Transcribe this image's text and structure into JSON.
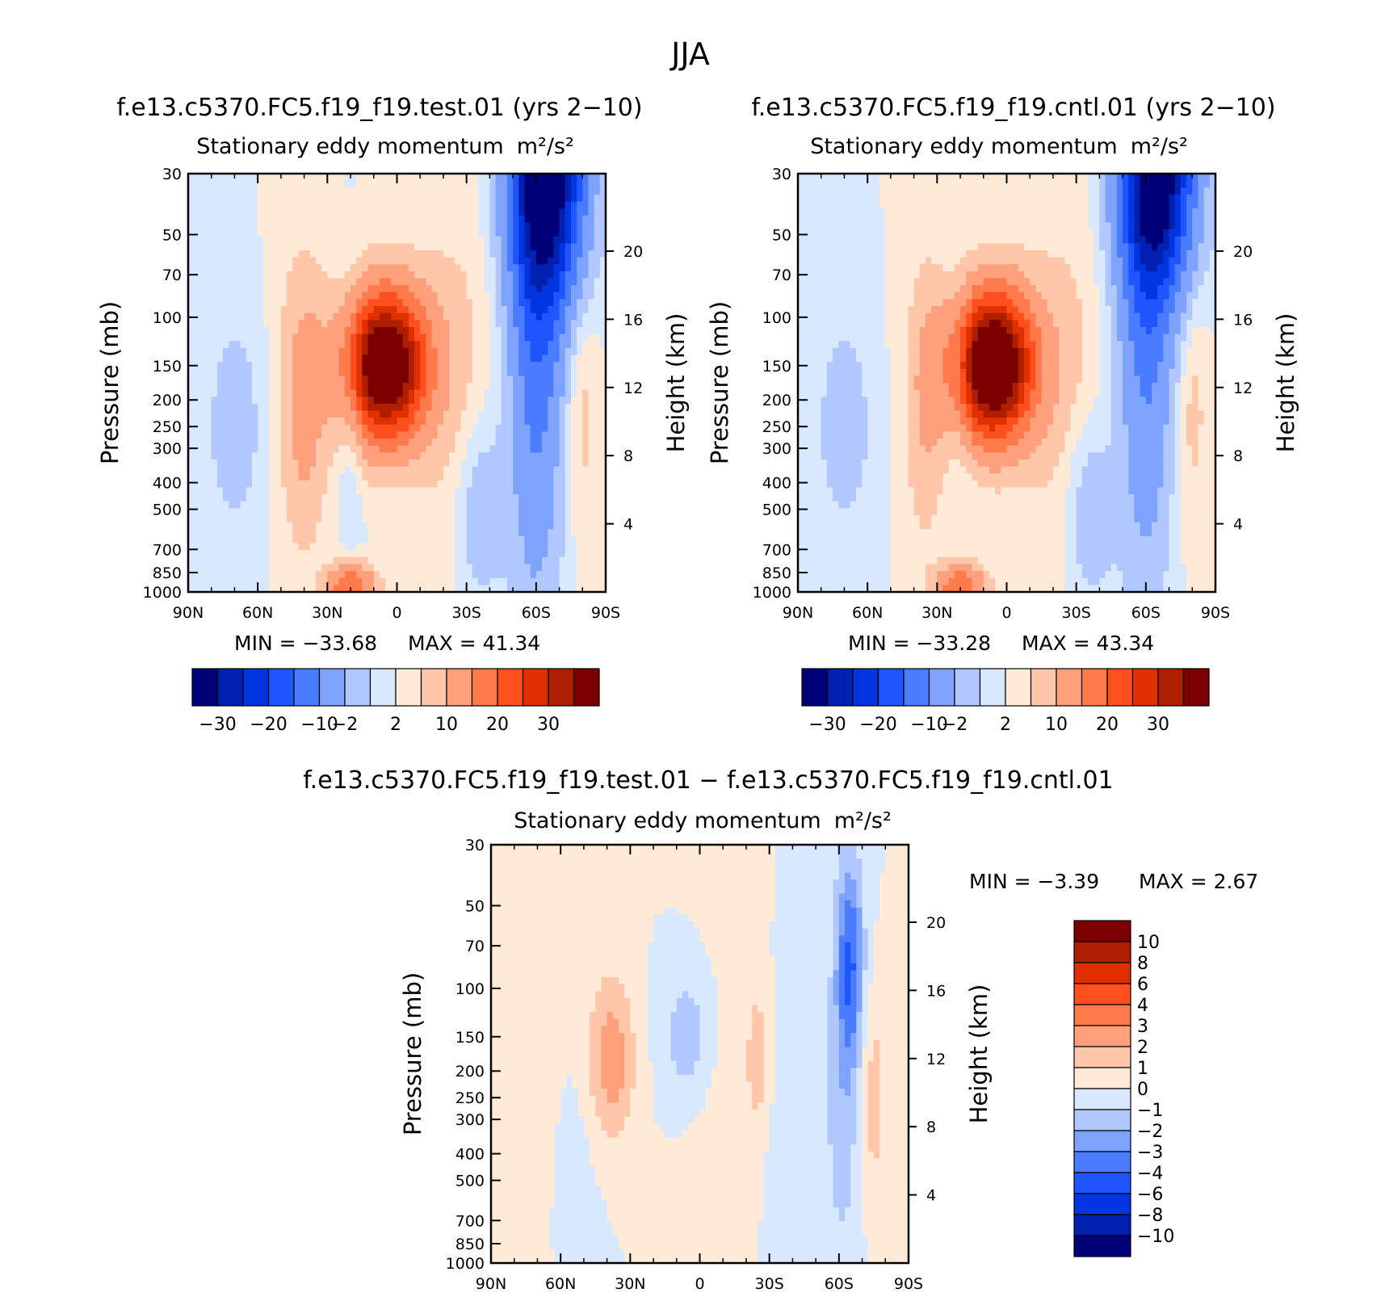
{
  "figure_title": "JJA",
  "chart_data": [
    {
      "id": "test",
      "type": "contour",
      "case_title": "f.e13.c5370.FC5.f19_f19.test.01 (yrs 2−10)",
      "variable": "Stationary eddy momentum",
      "units": "m²/s²",
      "ylabel": "Pressure (mb)",
      "ylabel_right": "Height (km)",
      "x_ticks": [
        "90N",
        "60N",
        "30N",
        "0",
        "30S",
        "60S",
        "90S"
      ],
      "y_ticks": [
        30,
        50,
        70,
        100,
        150,
        200,
        250,
        300,
        400,
        500,
        700,
        850,
        1000
      ],
      "height_ticks": [
        20,
        16,
        12,
        8,
        4
      ],
      "min_label": "MIN = −33.68",
      "max_label": "MAX = 41.34",
      "min": -33.68,
      "max": 41.34,
      "levels": [
        -30,
        -25,
        -20,
        -15,
        -10,
        -5,
        -2,
        0,
        2,
        5,
        10,
        15,
        20,
        25,
        30
      ],
      "colorbar_labels": [
        "−30",
        "−20",
        "−10",
        "−2",
        "2",
        "10",
        "20",
        "30"
      ],
      "colors": [
        "#000078",
        "#0020b0",
        "#0035e0",
        "#1e55ff",
        "#4a7cff",
        "#7ea3ff",
        "#b0c8ff",
        "#d8e8ff",
        "#ffead8",
        "#ffc6aa",
        "#ffa07c",
        "#ff7a4a",
        "#ff4f1e",
        "#e03000",
        "#b01e00",
        "#7a0000"
      ],
      "features": [
        {
          "lat": 5,
          "p": 150,
          "amp": 41.34,
          "wlat": 12,
          "wp": 0.42
        },
        {
          "lat": -65,
          "p": 30,
          "amp": -33.68,
          "wlat": 11,
          "wp": 0.75
        },
        {
          "lat": -60,
          "p": 120,
          "amp": -12,
          "wlat": 8,
          "wp": 1.5
        },
        {
          "lat": -35,
          "p": 500,
          "amp": -5,
          "wlat": 8,
          "wp": 0.6
        },
        {
          "lat": 40,
          "p": 200,
          "amp": 7,
          "wlat": 7,
          "wp": 0.8
        },
        {
          "lat": 20,
          "p": 200,
          "amp": -4,
          "wlat": 4,
          "wp": 0.6
        },
        {
          "lat": 70,
          "p": 250,
          "amp": -4,
          "wlat": 8,
          "wp": 0.6
        },
        {
          "lat": 20,
          "p": 950,
          "amp": 15,
          "wlat": 7,
          "wp": 0.12
        },
        {
          "lat": -25,
          "p": 200,
          "amp": 3,
          "wlat": 12,
          "wp": 1.2
        },
        {
          "lat": -80,
          "p": 200,
          "amp": 3,
          "wlat": 5,
          "wp": 0.8
        }
      ]
    },
    {
      "id": "control",
      "type": "contour",
      "case_title": "f.e13.c5370.FC5.f19_f19.cntl.01 (yrs 2−10)",
      "variable": "Stationary eddy momentum",
      "units": "m²/s²",
      "ylabel": "Pressure (mb)",
      "ylabel_right": "Height (km)",
      "x_ticks": [
        "90N",
        "60N",
        "30N",
        "0",
        "30S",
        "60S",
        "90S"
      ],
      "y_ticks": [
        30,
        50,
        70,
        100,
        150,
        200,
        250,
        300,
        400,
        500,
        700,
        850,
        1000
      ],
      "height_ticks": [
        20,
        16,
        12,
        8,
        4
      ],
      "min_label": "MIN = −33.28",
      "max_label": "MAX = 43.34",
      "min": -33.28,
      "max": 43.34,
      "levels": [
        -30,
        -25,
        -20,
        -15,
        -10,
        -5,
        -2,
        0,
        2,
        5,
        10,
        15,
        20,
        25,
        30
      ],
      "colorbar_labels": [
        "−30",
        "−20",
        "−10",
        "−2",
        "2",
        "10",
        "20",
        "30"
      ],
      "colors": [
        "#000078",
        "#0020b0",
        "#0035e0",
        "#1e55ff",
        "#4a7cff",
        "#7ea3ff",
        "#b0c8ff",
        "#d8e8ff",
        "#ffead8",
        "#ffc6aa",
        "#ffa07c",
        "#ff7a4a",
        "#ff4f1e",
        "#e03000",
        "#b01e00",
        "#7a0000"
      ],
      "features": [
        {
          "lat": 6,
          "p": 150,
          "amp": 43.34,
          "wlat": 12,
          "wp": 0.42
        },
        {
          "lat": -65,
          "p": 30,
          "amp": -33.28,
          "wlat": 11,
          "wp": 0.7
        },
        {
          "lat": -60,
          "p": 120,
          "amp": -10,
          "wlat": 8,
          "wp": 1.4
        },
        {
          "lat": -35,
          "p": 500,
          "amp": -5,
          "wlat": 8,
          "wp": 0.6
        },
        {
          "lat": 35,
          "p": 200,
          "amp": 5,
          "wlat": 6,
          "wp": 0.8
        },
        {
          "lat": 20,
          "p": 160,
          "amp": -5,
          "wlat": 4,
          "wp": 0.5
        },
        {
          "lat": 70,
          "p": 250,
          "amp": -4,
          "wlat": 8,
          "wp": 0.6
        },
        {
          "lat": 20,
          "p": 950,
          "amp": 15,
          "wlat": 7,
          "wp": 0.12
        },
        {
          "lat": -25,
          "p": 200,
          "amp": 3,
          "wlat": 12,
          "wp": 1.2
        },
        {
          "lat": -80,
          "p": 200,
          "amp": 3,
          "wlat": 5,
          "wp": 0.8
        }
      ]
    },
    {
      "id": "difference",
      "type": "contour",
      "case_title": "f.e13.c5370.FC5.f19_f19.test.01 − f.e13.c5370.FC5.f19_f19.cntl.01",
      "variable": "Stationary eddy momentum",
      "units": "m²/s²",
      "ylabel": "Pressure (mb)",
      "ylabel_right": "Height (km)",
      "x_ticks": [
        "90N",
        "60N",
        "30N",
        "0",
        "30S",
        "60S",
        "90S"
      ],
      "y_ticks": [
        30,
        50,
        70,
        100,
        150,
        200,
        250,
        300,
        400,
        500,
        700,
        850,
        1000
      ],
      "height_ticks": [
        20,
        16,
        12,
        8,
        4
      ],
      "min_label": "MIN = −3.39",
      "max_label": "MAX = 2.67",
      "min": -3.39,
      "max": 2.67,
      "levels": [
        -10,
        -8,
        -6,
        -4,
        -3,
        -2,
        -1,
        0,
        1,
        2,
        3,
        4,
        6,
        8,
        10
      ],
      "colorbar_labels": [
        "10",
        "8",
        "6",
        "4",
        "3",
        "2",
        "1",
        "0",
        "−1",
        "−2",
        "−3",
        "−4",
        "−6",
        "−8",
        "−10"
      ],
      "colors": [
        "#000078",
        "#0020b0",
        "#0035e0",
        "#1e55ff",
        "#4a7cff",
        "#7ea3ff",
        "#b0c8ff",
        "#d8e8ff",
        "#ffead8",
        "#ffc6aa",
        "#ffa07c",
        "#ff7a4a",
        "#ff4f1e",
        "#e03000",
        "#b01e00",
        "#7a0000"
      ],
      "features": [
        {
          "lat": -65,
          "p": 80,
          "amp": -3.39,
          "wlat": 4,
          "wp": 0.6
        },
        {
          "lat": -62,
          "p": 200,
          "amp": -1.5,
          "wlat": 5,
          "wp": 1.2
        },
        {
          "lat": 38,
          "p": 180,
          "amp": 2.67,
          "wlat": 7,
          "wp": 0.5
        },
        {
          "lat": -25,
          "p": 180,
          "amp": 2,
          "wlat": 3,
          "wp": 0.35
        },
        {
          "lat": 5,
          "p": 150,
          "amp": -1.8,
          "wlat": 8,
          "wp": 0.45
        },
        {
          "lat": -75,
          "p": 250,
          "amp": 1.5,
          "wlat": 4,
          "wp": 0.6
        },
        {
          "lat": 70,
          "p": 300,
          "amp": 0.5,
          "wlat": 8,
          "wp": 1.5
        },
        {
          "lat": -45,
          "p": 500,
          "amp": -0.6,
          "wlat": 10,
          "wp": 1.0
        },
        {
          "lat": -5,
          "p": 300,
          "amp": 0.6,
          "wlat": 12,
          "wp": 1.2
        },
        {
          "lat": 55,
          "p": 600,
          "amp": -0.6,
          "wlat": 8,
          "wp": 0.7
        }
      ]
    }
  ]
}
